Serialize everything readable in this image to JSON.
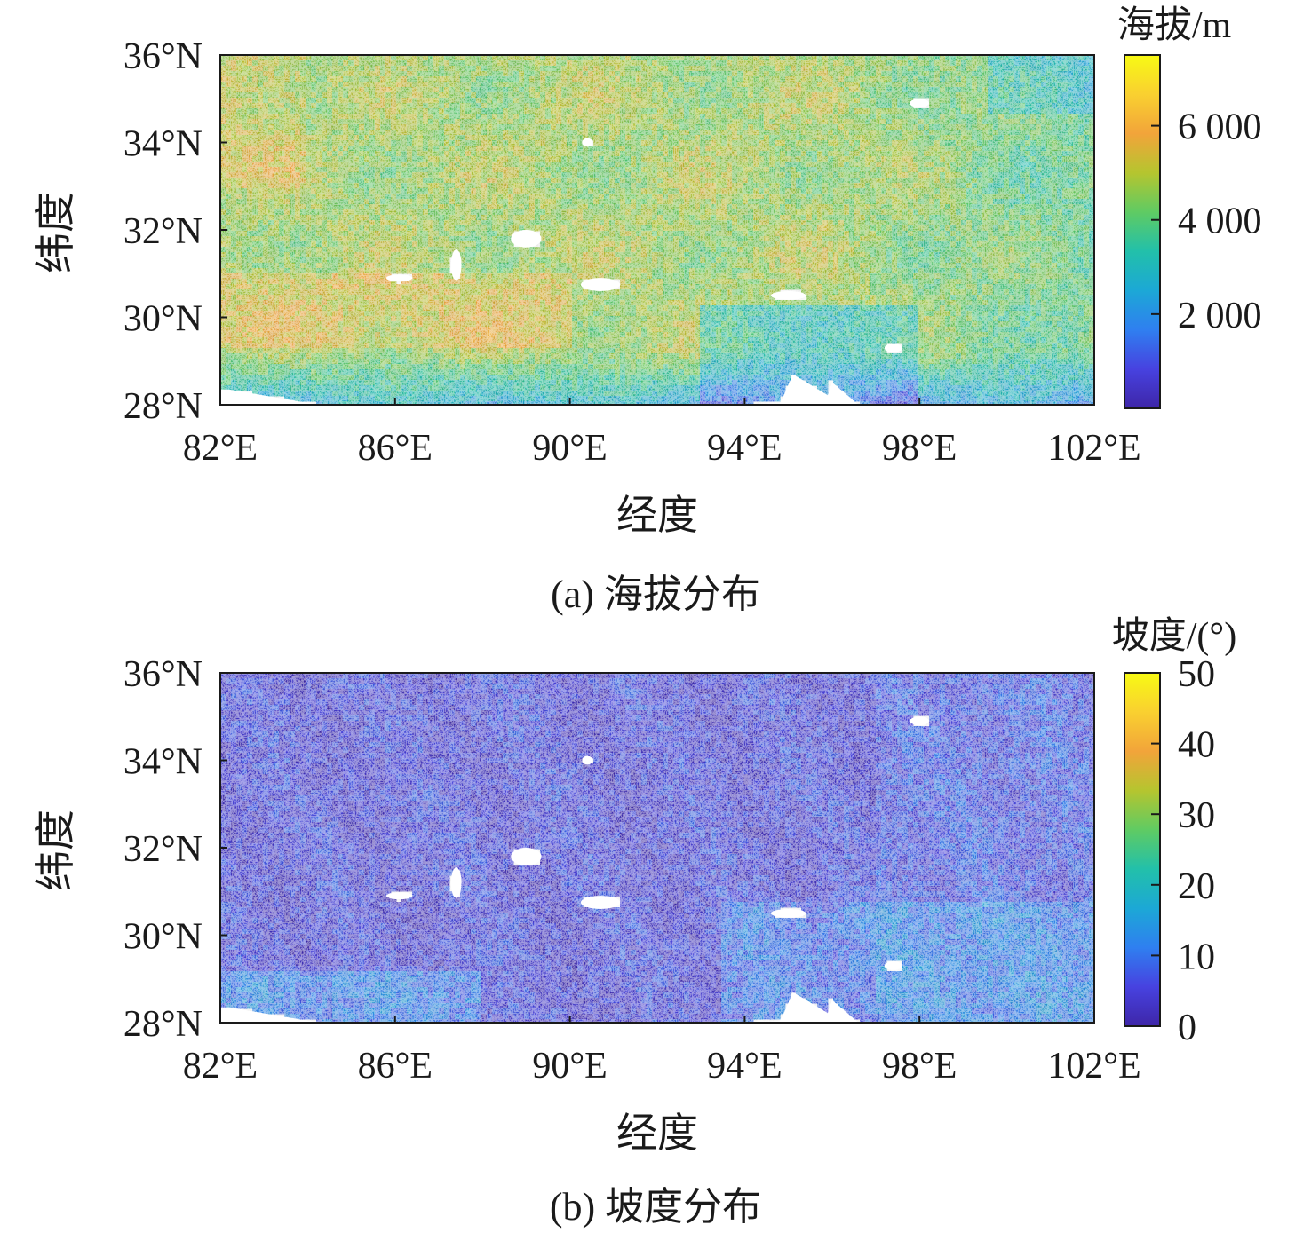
{
  "chart_data": [
    {
      "type": "heatmap",
      "caption": "(a) 海拔分布",
      "xlabel": "经度",
      "ylabel": "纬度",
      "xlim": [
        82,
        102
      ],
      "ylim": [
        28,
        36
      ],
      "x_ticks": [
        82,
        86,
        90,
        94,
        98,
        102
      ],
      "x_tick_labels": [
        "82°E",
        "86°E",
        "90°E",
        "94°E",
        "98°E",
        "102°E"
      ],
      "y_ticks": [
        28,
        30,
        32,
        34,
        36
      ],
      "y_tick_labels": [
        "28°N",
        "30°N",
        "32°N",
        "34°N",
        "36°N"
      ],
      "colorbar": {
        "title": "海拔/m",
        "range": [
          0,
          7500
        ],
        "ticks": [
          2000,
          4000,
          6000
        ],
        "tick_labels": [
          "2 000",
          "4 000",
          "6 000"
        ],
        "colormap": "parula"
      }
    },
    {
      "type": "heatmap",
      "caption": "(b) 坡度分布",
      "xlabel": "经度",
      "ylabel": "纬度",
      "xlim": [
        82,
        102
      ],
      "ylim": [
        28,
        36
      ],
      "x_ticks": [
        82,
        86,
        90,
        94,
        98,
        102
      ],
      "x_tick_labels": [
        "82°E",
        "86°E",
        "90°E",
        "94°E",
        "98°E",
        "102°E"
      ],
      "y_ticks": [
        28,
        30,
        32,
        34,
        36
      ],
      "y_tick_labels": [
        "28°N",
        "30°N",
        "32°N",
        "34°N",
        "36°N"
      ],
      "colorbar": {
        "title": "坡度/(°)",
        "range": [
          0,
          50
        ],
        "ticks": [
          0,
          10,
          20,
          30,
          40,
          50
        ],
        "tick_labels": [
          "0",
          "10",
          "20",
          "30",
          "40",
          "50"
        ],
        "colormap": "parula"
      }
    }
  ],
  "colors": {
    "parula": [
      "#3e26a8",
      "#4742e0",
      "#2f7ff0",
      "#1ca8d6",
      "#22c0aa",
      "#5fcb63",
      "#b5c52f",
      "#f2a43a",
      "#f9d030",
      "#f8fa14"
    ],
    "no_data": "#ffffff",
    "axis": "#1a1a1a"
  }
}
